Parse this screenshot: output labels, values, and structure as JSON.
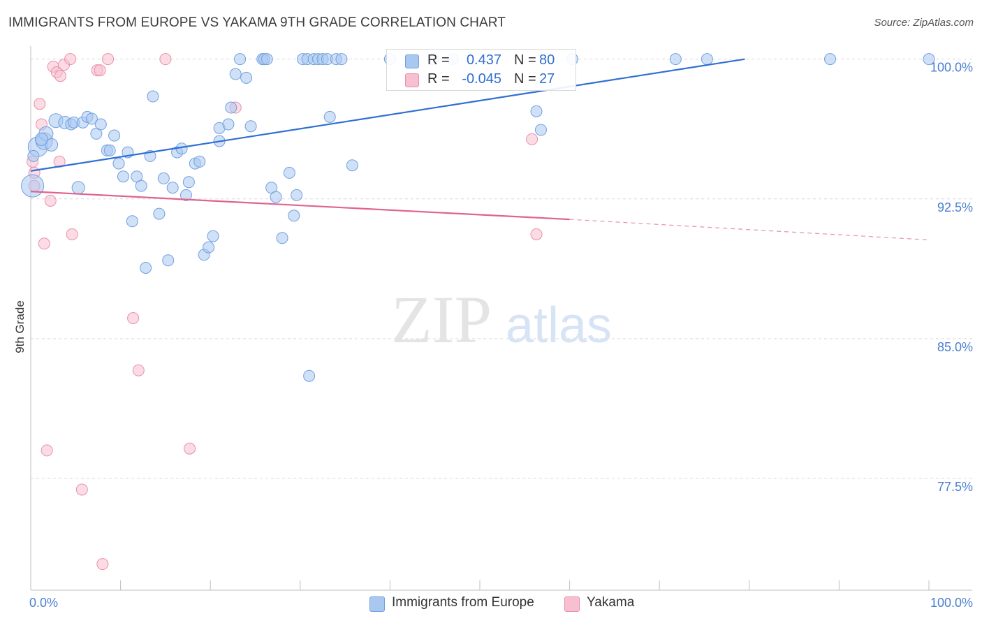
{
  "header": {
    "title": "IMMIGRANTS FROM EUROPE VS YAKAMA 9TH GRADE CORRELATION CHART",
    "source": "Source: ZipAtlas.com"
  },
  "watermark": {
    "zip": "ZIP",
    "atlas": "atlas"
  },
  "legend": {
    "rows": [
      {
        "r_label": "R =",
        "r_value": "0.437",
        "n_label": "N =",
        "n_value": "80"
      },
      {
        "r_label": "R =",
        "r_value": "-0.045",
        "n_label": "N =",
        "n_value": "27"
      }
    ]
  },
  "bottom_legend": {
    "items": [
      "Immigrants from Europe",
      "Yakama"
    ]
  },
  "colors": {
    "blue_fill": "#a9c8f0",
    "blue_stroke": "#6fa0e0",
    "blue_line": "#2f6fd1",
    "pink_fill": "#f7c0d0",
    "pink_stroke": "#ea8fab",
    "pink_line": "#e0638e",
    "grid": "#d9d9d9",
    "tick_label": "#4a7fd0"
  },
  "chart_data": {
    "type": "scatter",
    "ylabel": "9th Grade",
    "xlim": [
      0,
      100
    ],
    "ylim": [
      71.5,
      100.7
    ],
    "x_tick_labels": [
      {
        "x": 0,
        "label": "0.0%"
      },
      {
        "x": 100,
        "label": "100.0%"
      }
    ],
    "y_ticks": [
      {
        "y": 100.0,
        "label": "100.0%"
      },
      {
        "y": 92.5,
        "label": "92.5%"
      },
      {
        "y": 85.0,
        "label": "85.0%"
      },
      {
        "y": 77.5,
        "label": "77.5%"
      }
    ],
    "grid": true,
    "legend_position": "top-center",
    "series": [
      {
        "name": "Immigrants from Europe",
        "color": "#a9c8f0",
        "trend": {
          "x0": 0,
          "y0": 94.0,
          "x1": 79.5,
          "y1": 100.0,
          "dashed_to": null
        },
        "points": [
          {
            "x": 0.2,
            "y": 93.2,
            "s": 16
          },
          {
            "x": 0.8,
            "y": 95.3,
            "s": 14
          },
          {
            "x": 1.5,
            "y": 95.6,
            "s": 12
          },
          {
            "x": 1.7,
            "y": 96.0,
            "s": 10
          },
          {
            "x": 2.3,
            "y": 95.4,
            "s": 9
          },
          {
            "x": 2.8,
            "y": 96.7,
            "s": 10
          },
          {
            "x": 3.8,
            "y": 96.6,
            "s": 9
          },
          {
            "x": 4.5,
            "y": 96.5,
            "s": 8
          },
          {
            "x": 4.8,
            "y": 96.6,
            "s": 8
          },
          {
            "x": 5.3,
            "y": 93.1,
            "s": 9
          },
          {
            "x": 5.8,
            "y": 96.6,
            "s": 8
          },
          {
            "x": 6.3,
            "y": 96.9,
            "s": 8
          },
          {
            "x": 6.8,
            "y": 96.8,
            "s": 8
          },
          {
            "x": 7.3,
            "y": 96.0,
            "s": 8
          },
          {
            "x": 7.8,
            "y": 96.5,
            "s": 8
          },
          {
            "x": 8.5,
            "y": 95.1,
            "s": 8
          },
          {
            "x": 8.8,
            "y": 95.1,
            "s": 8
          },
          {
            "x": 9.3,
            "y": 95.9,
            "s": 8
          },
          {
            "x": 9.8,
            "y": 94.4,
            "s": 8
          },
          {
            "x": 10.3,
            "y": 93.7,
            "s": 8
          },
          {
            "x": 10.8,
            "y": 95.0,
            "s": 8
          },
          {
            "x": 11.3,
            "y": 91.3,
            "s": 8
          },
          {
            "x": 11.8,
            "y": 93.7,
            "s": 8
          },
          {
            "x": 12.3,
            "y": 93.2,
            "s": 8
          },
          {
            "x": 12.8,
            "y": 88.8,
            "s": 8
          },
          {
            "x": 13.3,
            "y": 94.8,
            "s": 8
          },
          {
            "x": 13.6,
            "y": 98.0,
            "s": 8
          },
          {
            "x": 14.3,
            "y": 91.7,
            "s": 8
          },
          {
            "x": 14.8,
            "y": 93.6,
            "s": 8
          },
          {
            "x": 15.3,
            "y": 89.2,
            "s": 8
          },
          {
            "x": 15.8,
            "y": 93.1,
            "s": 8
          },
          {
            "x": 16.3,
            "y": 95.0,
            "s": 8
          },
          {
            "x": 16.8,
            "y": 95.2,
            "s": 8
          },
          {
            "x": 17.3,
            "y": 92.7,
            "s": 8
          },
          {
            "x": 17.6,
            "y": 93.4,
            "s": 8
          },
          {
            "x": 18.3,
            "y": 94.4,
            "s": 8
          },
          {
            "x": 18.8,
            "y": 94.5,
            "s": 8
          },
          {
            "x": 19.3,
            "y": 89.5,
            "s": 8
          },
          {
            "x": 19.8,
            "y": 89.9,
            "s": 8
          },
          {
            "x": 20.3,
            "y": 90.5,
            "s": 8
          },
          {
            "x": 21.0,
            "y": 95.6,
            "s": 8
          },
          {
            "x": 21.0,
            "y": 96.3,
            "s": 8
          },
          {
            "x": 22.0,
            "y": 96.5,
            "s": 8
          },
          {
            "x": 22.3,
            "y": 97.4,
            "s": 8
          },
          {
            "x": 22.8,
            "y": 99.2,
            "s": 8
          },
          {
            "x": 23.3,
            "y": 100.0,
            "s": 8
          },
          {
            "x": 24.0,
            "y": 99.0,
            "s": 8
          },
          {
            "x": 24.5,
            "y": 96.4,
            "s": 8
          },
          {
            "x": 25.8,
            "y": 100.0,
            "s": 8
          },
          {
            "x": 26.0,
            "y": 100.0,
            "s": 8
          },
          {
            "x": 26.3,
            "y": 100.0,
            "s": 8
          },
          {
            "x": 26.8,
            "y": 93.1,
            "s": 8
          },
          {
            "x": 27.3,
            "y": 92.6,
            "s": 8
          },
          {
            "x": 28.0,
            "y": 90.4,
            "s": 8
          },
          {
            "x": 28.8,
            "y": 93.9,
            "s": 8
          },
          {
            "x": 29.3,
            "y": 91.6,
            "s": 8
          },
          {
            "x": 29.6,
            "y": 92.7,
            "s": 8
          },
          {
            "x": 30.3,
            "y": 100.0,
            "s": 8
          },
          {
            "x": 30.8,
            "y": 100.0,
            "s": 8
          },
          {
            "x": 31.0,
            "y": 83.0,
            "s": 8
          },
          {
            "x": 31.5,
            "y": 100.0,
            "s": 8
          },
          {
            "x": 32.0,
            "y": 100.0,
            "s": 8
          },
          {
            "x": 32.5,
            "y": 100.0,
            "s": 8
          },
          {
            "x": 33.0,
            "y": 100.0,
            "s": 8
          },
          {
            "x": 33.3,
            "y": 96.9,
            "s": 8
          },
          {
            "x": 34.0,
            "y": 100.0,
            "s": 8
          },
          {
            "x": 34.6,
            "y": 100.0,
            "s": 8
          },
          {
            "x": 35.8,
            "y": 94.3,
            "s": 8
          },
          {
            "x": 40.0,
            "y": 100.0,
            "s": 8
          },
          {
            "x": 44.8,
            "y": 100.0,
            "s": 8
          },
          {
            "x": 47.0,
            "y": 100.0,
            "s": 8
          },
          {
            "x": 56.3,
            "y": 97.2,
            "s": 8
          },
          {
            "x": 56.8,
            "y": 96.2,
            "s": 8
          },
          {
            "x": 60.3,
            "y": 100.0,
            "s": 8
          },
          {
            "x": 71.8,
            "y": 100.0,
            "s": 8
          },
          {
            "x": 75.3,
            "y": 100.0,
            "s": 8
          },
          {
            "x": 89.0,
            "y": 100.0,
            "s": 8
          },
          {
            "x": 100.0,
            "y": 100.0,
            "s": 8
          },
          {
            "x": 0.3,
            "y": 94.8,
            "s": 8
          },
          {
            "x": 1.2,
            "y": 95.7,
            "s": 9
          }
        ]
      },
      {
        "name": "Yakama",
        "color": "#f7c0d0",
        "trend": {
          "x0": 0,
          "y0": 92.9,
          "x1": 60.0,
          "y1": 91.4,
          "dashed_to": {
            "x": 100,
            "y": 90.3
          }
        },
        "points": [
          {
            "x": 0.2,
            "y": 94.5,
            "s": 8
          },
          {
            "x": 0.4,
            "y": 93.9,
            "s": 8
          },
          {
            "x": 0.4,
            "y": 93.2,
            "s": 8
          },
          {
            "x": 1.0,
            "y": 97.6,
            "s": 8
          },
          {
            "x": 1.2,
            "y": 96.5,
            "s": 8
          },
          {
            "x": 1.5,
            "y": 90.1,
            "s": 8
          },
          {
            "x": 1.8,
            "y": 79.0,
            "s": 8
          },
          {
            "x": 2.2,
            "y": 92.4,
            "s": 8
          },
          {
            "x": 2.5,
            "y": 99.6,
            "s": 8
          },
          {
            "x": 2.9,
            "y": 99.3,
            "s": 8
          },
          {
            "x": 3.2,
            "y": 94.5,
            "s": 8
          },
          {
            "x": 3.3,
            "y": 99.1,
            "s": 8
          },
          {
            "x": 3.7,
            "y": 99.7,
            "s": 8
          },
          {
            "x": 4.4,
            "y": 100.0,
            "s": 8
          },
          {
            "x": 4.6,
            "y": 90.6,
            "s": 8
          },
          {
            "x": 5.7,
            "y": 76.9,
            "s": 8
          },
          {
            "x": 7.4,
            "y": 99.4,
            "s": 8
          },
          {
            "x": 7.7,
            "y": 99.4,
            "s": 8
          },
          {
            "x": 8.0,
            "y": 72.9,
            "s": 8
          },
          {
            "x": 8.6,
            "y": 100.0,
            "s": 8
          },
          {
            "x": 11.4,
            "y": 86.1,
            "s": 8
          },
          {
            "x": 12.0,
            "y": 83.3,
            "s": 8
          },
          {
            "x": 15.0,
            "y": 100.0,
            "s": 8
          },
          {
            "x": 17.7,
            "y": 79.1,
            "s": 8
          },
          {
            "x": 22.8,
            "y": 97.4,
            "s": 8
          },
          {
            "x": 55.8,
            "y": 95.7,
            "s": 8
          },
          {
            "x": 56.3,
            "y": 90.6,
            "s": 8
          }
        ]
      }
    ]
  }
}
